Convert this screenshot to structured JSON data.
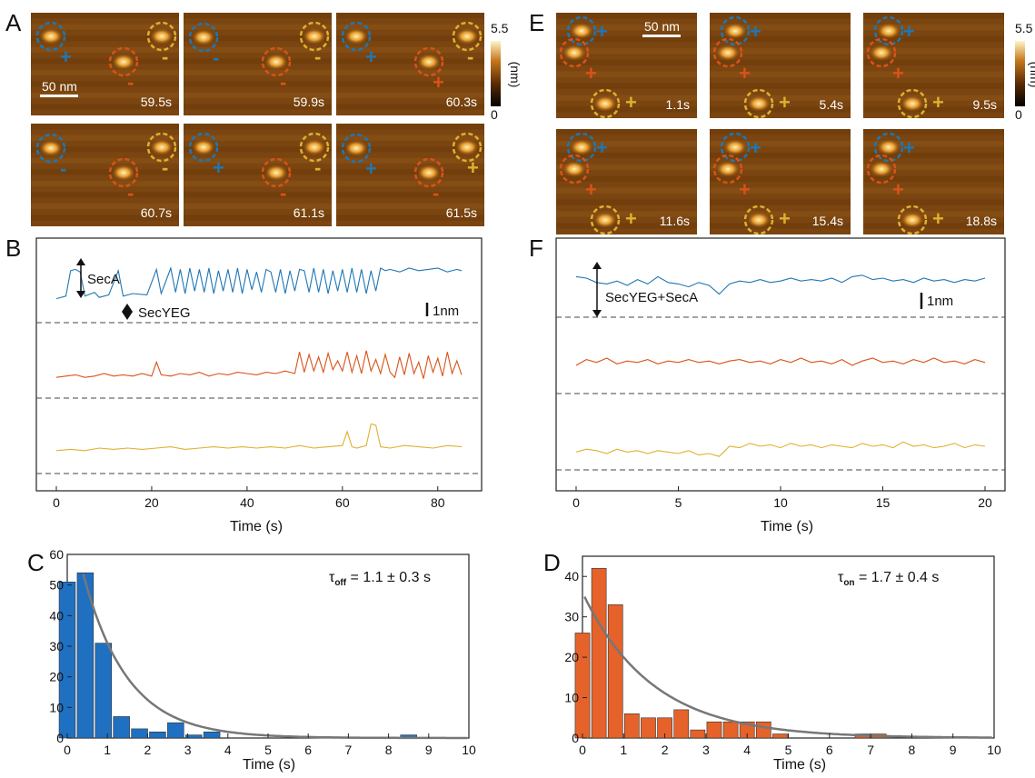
{
  "panels": {
    "A": {
      "label": "A",
      "frames": [
        "59.5s",
        "59.9s",
        "60.3s",
        "60.7s",
        "61.1s",
        "61.5s"
      ],
      "signs": [
        [
          "+",
          "-",
          "-"
        ],
        [
          "-",
          "-",
          "-"
        ],
        [
          "+",
          "+",
          "-"
        ],
        [
          "-",
          "-",
          "-"
        ],
        [
          "+",
          "-",
          "-"
        ],
        [
          "+",
          "-",
          "+"
        ]
      ],
      "scalebar": "50 nm",
      "colorbar": {
        "max": "5.5",
        "min": "0",
        "unit": "(nm)"
      }
    },
    "E": {
      "label": "E",
      "frames": [
        "1.1s",
        "5.4s",
        "9.5s",
        "11.6s",
        "15.4s",
        "18.8s"
      ],
      "signs": [
        [
          "+",
          "+",
          "+"
        ],
        [
          "+",
          "+",
          "+"
        ],
        [
          "+",
          "+",
          "+"
        ],
        [
          "+",
          "+",
          "+"
        ],
        [
          "+",
          "+",
          "+"
        ],
        [
          "+",
          "+",
          "+"
        ]
      ],
      "scalebar": "50 nm",
      "colorbar": {
        "max": "5.5",
        "min": "0",
        "unit": "(nm)"
      }
    },
    "B": {
      "label": "B",
      "annotation_seca": "SecA",
      "annotation_secyeg": "SecYEG",
      "scale": "1nm"
    },
    "F": {
      "label": "F",
      "annotation": "SecYEG+SecA",
      "scale": "1nm"
    },
    "C": {
      "label": "C",
      "tau_symbol": "τ",
      "tau_sub": "off",
      "tau_value": " = 1.1 ± 0.3 s"
    },
    "D": {
      "label": "D",
      "tau_symbol": "τ",
      "tau_sub": "on",
      "tau_value": " = 1.7 ± 0.4 s"
    }
  },
  "colors": {
    "blue": "#1f77b4",
    "orange": "#d95319",
    "yellow": "#e0b030",
    "fit": "#777777",
    "bar_blue": "#1f70c1",
    "bar_orange": "#e5622a"
  },
  "chart_data": [
    {
      "id": "B",
      "type": "line",
      "xlabel": "Time (s)",
      "xlim": [
        0,
        85
      ],
      "xticks": [
        0,
        20,
        40,
        60,
        80
      ],
      "series": [
        {
          "color": "blue",
          "x": [
            0,
            2,
            3,
            4,
            5,
            6,
            8,
            9,
            11,
            13,
            14,
            16,
            19,
            21,
            22,
            24,
            25,
            26,
            27,
            28,
            29,
            30,
            31,
            32,
            33,
            34,
            35,
            36,
            37,
            38,
            39,
            40,
            41,
            42,
            43,
            44,
            45,
            46,
            47,
            48,
            49,
            50,
            51,
            52,
            53,
            54,
            55,
            56,
            57,
            58,
            59,
            60,
            61,
            62,
            63,
            64,
            65,
            66,
            67,
            68,
            69,
            70,
            72,
            74,
            76,
            78,
            80,
            82,
            84,
            85
          ],
          "y": [
            0.1,
            0.3,
            2.3,
            2.4,
            2.2,
            0.3,
            0.6,
            0.2,
            0.4,
            2.3,
            0.3,
            0.5,
            0.4,
            2.4,
            0.5,
            2.5,
            0.6,
            2.4,
            0.5,
            2.5,
            0.7,
            2.4,
            0.6,
            2.5,
            0.5,
            2.3,
            0.7,
            2.4,
            0.6,
            2.5,
            0.5,
            2.4,
            0.8,
            2.2,
            0.6,
            2.4,
            2.2,
            0.6,
            2.4,
            0.5,
            2.3,
            0.7,
            2.4,
            2.3,
            0.6,
            2.5,
            0.6,
            2.4,
            0.5,
            2.3,
            0.7,
            2.4,
            0.6,
            2.5,
            0.6,
            2.4,
            0.5,
            2.3,
            0.7,
            2.5,
            2.3,
            2.4,
            2.2,
            2.5,
            2.3,
            2.4,
            2.5,
            2.2,
            2.4,
            2.3
          ]
        },
        {
          "color": "orange",
          "x": [
            0,
            2,
            4,
            6,
            8,
            10,
            12,
            14,
            16,
            18,
            20,
            21,
            22,
            24,
            26,
            28,
            30,
            32,
            34,
            36,
            38,
            40,
            42,
            44,
            46,
            48,
            50,
            51,
            52,
            53,
            54,
            55,
            56,
            57,
            58,
            59,
            60,
            61,
            62,
            63,
            64,
            65,
            66,
            67,
            68,
            69,
            70,
            71,
            72,
            73,
            74,
            75,
            76,
            77,
            78,
            79,
            80,
            81,
            82,
            83,
            84,
            85
          ],
          "y": [
            0.2,
            0.3,
            0.4,
            0.2,
            0.3,
            0.5,
            0.3,
            0.4,
            0.3,
            0.5,
            0.3,
            1.4,
            0.4,
            0.3,
            0.5,
            0.4,
            0.6,
            0.3,
            0.5,
            0.4,
            0.6,
            0.5,
            0.4,
            0.6,
            0.5,
            0.7,
            0.5,
            2.2,
            0.6,
            2.0,
            0.7,
            1.8,
            0.6,
            2.1,
            0.8,
            1.5,
            0.7,
            2.2,
            0.6,
            1.9,
            0.5,
            2.3,
            0.7,
            1.6,
            0.5,
            2.0,
            0.6,
            0.2,
            1.8,
            0.4,
            2.1,
            0.5,
            1.4,
            0.1,
            1.9,
            0.6,
            1.7,
            0.3,
            2.2,
            0.5,
            1.5,
            0.4
          ]
        },
        {
          "color": "yellow",
          "x": [
            0,
            3,
            6,
            9,
            12,
            15,
            18,
            21,
            24,
            27,
            30,
            33,
            36,
            39,
            42,
            45,
            48,
            51,
            54,
            57,
            60,
            61,
            62,
            63,
            65,
            66,
            67,
            68,
            70,
            73,
            76,
            79,
            82,
            85
          ],
          "y": [
            0.3,
            0.4,
            0.3,
            0.5,
            0.4,
            0.5,
            0.4,
            0.5,
            0.6,
            0.4,
            0.5,
            0.6,
            0.5,
            0.6,
            0.5,
            0.6,
            0.5,
            0.7,
            0.5,
            0.6,
            0.7,
            1.8,
            0.6,
            0.5,
            0.7,
            2.4,
            2.3,
            0.6,
            0.5,
            0.7,
            0.6,
            0.5,
            0.7,
            0.6
          ]
        }
      ]
    },
    {
      "id": "F",
      "type": "line",
      "xlabel": "Time (s)",
      "xlim": [
        0,
        20
      ],
      "xticks": [
        0,
        5,
        10,
        15,
        20
      ],
      "series": [
        {
          "color": "blue",
          "x": [
            0,
            0.5,
            1,
            1.5,
            2,
            2.5,
            3,
            3.5,
            4,
            4.5,
            5,
            5.5,
            6,
            6.5,
            7,
            7.5,
            8,
            8.5,
            9,
            9.5,
            10,
            10.5,
            11,
            11.5,
            12,
            12.5,
            13,
            13.5,
            14,
            14.5,
            15,
            15.5,
            16,
            16.5,
            17,
            17.5,
            18,
            18.5,
            19,
            19.5,
            20
          ],
          "y": [
            2.1,
            2.0,
            1.7,
            1.6,
            1.8,
            1.5,
            1.9,
            1.6,
            2.1,
            1.7,
            1.6,
            1.4,
            1.7,
            1.5,
            0.9,
            1.6,
            1.8,
            1.7,
            1.9,
            1.7,
            1.8,
            2.0,
            1.8,
            1.9,
            1.8,
            2.0,
            1.7,
            2.1,
            2.2,
            1.9,
            2.0,
            1.8,
            1.9,
            1.7,
            2.0,
            1.8,
            1.9,
            1.7,
            1.9,
            1.8,
            2.0
          ]
        },
        {
          "color": "orange",
          "x": [
            0,
            0.5,
            1,
            1.5,
            2,
            2.5,
            3,
            3.5,
            4,
            4.5,
            5,
            5.5,
            6,
            6.5,
            7,
            7.5,
            8,
            8.5,
            9,
            9.5,
            10,
            10.5,
            11,
            11.5,
            12,
            12.5,
            13,
            13.5,
            14,
            14.5,
            15,
            15.5,
            16,
            16.5,
            17,
            17.5,
            18,
            18.5,
            19,
            19.5,
            20
          ],
          "y": [
            1.0,
            1.4,
            1.2,
            1.5,
            1.1,
            1.3,
            1.2,
            1.4,
            1.1,
            1.3,
            1.2,
            1.4,
            1.2,
            1.3,
            1.1,
            1.3,
            1.4,
            1.2,
            1.3,
            1.1,
            1.4,
            1.2,
            1.5,
            1.2,
            1.3,
            1.1,
            1.4,
            1.0,
            1.3,
            1.5,
            1.2,
            1.3,
            1.1,
            1.4,
            1.2,
            1.5,
            1.2,
            1.3,
            1.1,
            1.4,
            1.2
          ]
        },
        {
          "color": "yellow",
          "x": [
            0,
            0.5,
            1,
            1.5,
            2,
            2.5,
            3,
            3.5,
            4,
            4.5,
            5,
            5.5,
            6,
            6.5,
            7,
            7.5,
            8,
            8.5,
            9,
            9.5,
            10,
            10.5,
            11,
            11.5,
            12,
            12.5,
            13,
            13.5,
            14,
            14.5,
            15,
            15.5,
            16,
            16.5,
            17,
            17.5,
            18,
            18.5,
            19,
            19.5,
            20
          ],
          "y": [
            1.1,
            1.3,
            1.2,
            1.0,
            1.3,
            1.1,
            1.2,
            1.0,
            1.2,
            1.1,
            1.0,
            1.2,
            0.9,
            1.0,
            0.8,
            1.5,
            1.4,
            1.7,
            1.5,
            1.6,
            1.4,
            1.7,
            1.5,
            1.6,
            1.4,
            1.6,
            1.5,
            1.4,
            1.7,
            1.5,
            1.6,
            1.4,
            1.8,
            1.5,
            1.6,
            1.4,
            1.5,
            1.7,
            1.4,
            1.6,
            1.5
          ]
        }
      ]
    },
    {
      "id": "C",
      "type": "bar",
      "xlabel": "Time (s)",
      "xlim": [
        0,
        10
      ],
      "ylim": [
        0,
        60
      ],
      "xticks": [
        0,
        1,
        2,
        3,
        4,
        5,
        6,
        7,
        8,
        9,
        10
      ],
      "yticks": [
        0,
        10,
        20,
        30,
        40,
        50,
        60
      ],
      "bin_width": 0.45,
      "bin_centers": [
        0.0,
        0.45,
        0.9,
        1.35,
        1.8,
        2.25,
        2.7,
        3.15,
        3.6,
        8.5
      ],
      "values": [
        51,
        54,
        31,
        7,
        3,
        2,
        5,
        1,
        2,
        1
      ],
      "fit": {
        "amplitude": 56,
        "tau": 1.1,
        "x0": 0.35
      }
    },
    {
      "id": "D",
      "type": "bar",
      "xlabel": "Time (s)",
      "xlim": [
        0,
        10
      ],
      "ylim": [
        0,
        45
      ],
      "xticks": [
        0,
        1,
        2,
        3,
        4,
        5,
        6,
        7,
        8,
        9,
        10
      ],
      "yticks": [
        0,
        10,
        20,
        30,
        40
      ],
      "bin_width": 0.4,
      "bin_centers": [
        0.0,
        0.4,
        0.8,
        1.2,
        1.6,
        2.0,
        2.4,
        2.8,
        3.2,
        3.6,
        4.0,
        4.4,
        4.8,
        5.2,
        6.8,
        7.2
      ],
      "values": [
        26,
        42,
        33,
        6,
        5,
        5,
        7,
        2,
        4,
        4,
        4,
        4,
        1,
        0,
        1,
        1
      ],
      "fit": {
        "amplitude": 36,
        "tau": 1.7,
        "x0": 0.0
      }
    }
  ]
}
